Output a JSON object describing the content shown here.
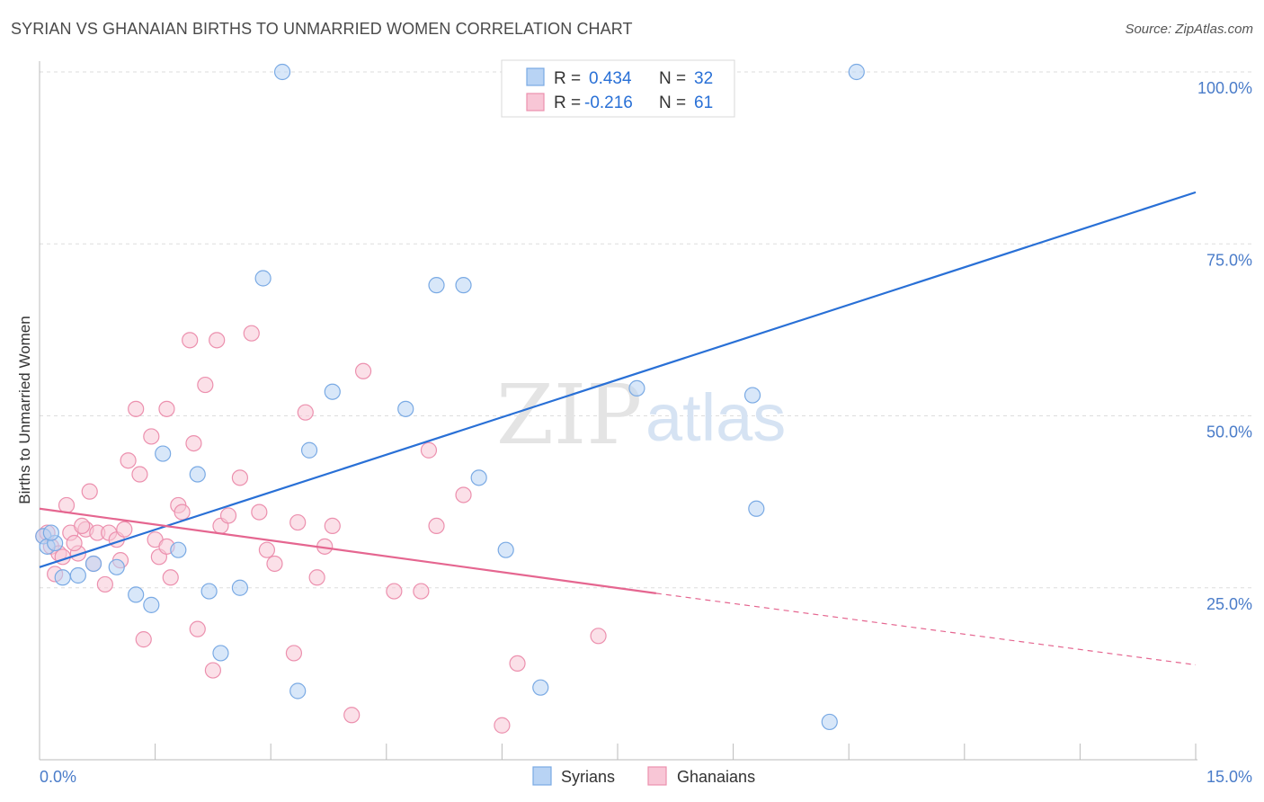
{
  "header": {
    "title": "SYRIAN VS GHANAIAN BIRTHS TO UNMARRIED WOMEN CORRELATION CHART",
    "source": "Source: ZipAtlas.com"
  },
  "watermark": {
    "zip": "ZIP",
    "atlas": "atlas"
  },
  "legend": {
    "r_label": "R =",
    "n_label": "N =",
    "rows": [
      {
        "series": "syrians",
        "r": "0.434",
        "n": "32"
      },
      {
        "series": "ghanaians",
        "r": "-0.216",
        "n": "61"
      }
    ]
  },
  "bottom_legend": {
    "syrians": "Syrians",
    "ghanaians": "Ghanaians"
  },
  "colors": {
    "syrians_fill": "#b8d3f4",
    "syrians_stroke": "#7aaae4",
    "syrians_line": "#2970d6",
    "ghanaians_fill": "#f8c6d6",
    "ghanaians_stroke": "#ec90ae",
    "ghanaians_line": "#e56690",
    "tick_text": "#4a7cc9"
  },
  "chart_data": {
    "type": "scatter",
    "title": "SYRIAN VS GHANAIAN BIRTHS TO UNMARRIED WOMEN CORRELATION CHART",
    "xlabel": "",
    "ylabel": "Births to Unmarried Women",
    "xlim": [
      0,
      15
    ],
    "ylim": [
      0,
      100
    ],
    "x_tick_labels": [
      {
        "value": 0,
        "label": "0.0%"
      },
      {
        "value": 15,
        "label": "15.0%"
      }
    ],
    "y_tick_labels": [
      {
        "value": 25,
        "label": "25.0%"
      },
      {
        "value": 50,
        "label": "50.0%"
      },
      {
        "value": 75,
        "label": "75.0%"
      },
      {
        "value": 100,
        "label": "100.0%"
      }
    ],
    "grid": true,
    "legend_position": "top-center",
    "series": [
      {
        "name": "Syrians",
        "key": "syrians",
        "r": 0.434,
        "n": 32,
        "trend": {
          "x0": 0,
          "y0": 28,
          "x1": 15,
          "y1": 82.5
        },
        "points": [
          [
            0.05,
            32.5
          ],
          [
            0.1,
            31
          ],
          [
            0.3,
            26.5
          ],
          [
            0.5,
            26.8
          ],
          [
            0.7,
            28.5
          ],
          [
            1.0,
            28
          ],
          [
            1.25,
            24
          ],
          [
            1.45,
            22.5
          ],
          [
            1.6,
            44.5
          ],
          [
            1.8,
            30.5
          ],
          [
            2.05,
            41.5
          ],
          [
            2.2,
            24.5
          ],
          [
            2.35,
            15.5
          ],
          [
            2.6,
            25
          ],
          [
            2.9,
            70
          ],
          [
            3.5,
            45
          ],
          [
            3.35,
            10
          ],
          [
            3.8,
            53.5
          ],
          [
            3.15,
            100
          ],
          [
            4.75,
            51
          ],
          [
            5.15,
            69
          ],
          [
            5.5,
            69
          ],
          [
            5.7,
            41
          ],
          [
            6.05,
            30.5
          ],
          [
            6.5,
            10.5
          ],
          [
            7.75,
            54
          ],
          [
            9.25,
            53
          ],
          [
            9.3,
            36.5
          ],
          [
            10.25,
            5.5
          ],
          [
            10.6,
            100
          ],
          [
            0.2,
            31.5
          ],
          [
            0.15,
            33
          ]
        ]
      },
      {
        "name": "Ghanaians",
        "key": "ghanaians",
        "r": -0.216,
        "n": 61,
        "trend": {
          "x0": 0,
          "y0": 36.5,
          "x1": 8.0,
          "y1": 24.2,
          "dash_to_x": 15,
          "dash_to_y": 13.8
        },
        "points": [
          [
            0.05,
            32.5
          ],
          [
            0.1,
            33
          ],
          [
            0.15,
            31
          ],
          [
            0.2,
            27
          ],
          [
            0.25,
            30
          ],
          [
            0.35,
            37
          ],
          [
            0.4,
            33
          ],
          [
            0.5,
            30
          ],
          [
            0.6,
            33.5
          ],
          [
            0.65,
            39
          ],
          [
            0.7,
            28.5
          ],
          [
            0.75,
            33
          ],
          [
            0.85,
            25.5
          ],
          [
            0.9,
            33
          ],
          [
            1.0,
            32
          ],
          [
            1.05,
            29
          ],
          [
            1.15,
            43.5
          ],
          [
            1.25,
            51
          ],
          [
            1.3,
            41.5
          ],
          [
            1.35,
            17.5
          ],
          [
            1.45,
            47
          ],
          [
            1.5,
            32
          ],
          [
            1.55,
            29.5
          ],
          [
            1.65,
            31
          ],
          [
            1.65,
            51
          ],
          [
            1.7,
            26.5
          ],
          [
            1.8,
            37
          ],
          [
            1.85,
            36
          ],
          [
            1.95,
            61
          ],
          [
            2.0,
            46
          ],
          [
            2.05,
            19
          ],
          [
            2.15,
            54.5
          ],
          [
            2.25,
            13
          ],
          [
            2.3,
            61
          ],
          [
            2.35,
            34
          ],
          [
            2.45,
            35.5
          ],
          [
            2.6,
            41
          ],
          [
            2.75,
            62
          ],
          [
            2.85,
            36
          ],
          [
            2.95,
            30.5
          ],
          [
            3.05,
            28.5
          ],
          [
            3.3,
            15.5
          ],
          [
            3.35,
            34.5
          ],
          [
            3.45,
            50.5
          ],
          [
            3.6,
            26.5
          ],
          [
            3.7,
            31
          ],
          [
            3.8,
            34
          ],
          [
            4.05,
            6.5
          ],
          [
            4.2,
            56.5
          ],
          [
            4.6,
            24.5
          ],
          [
            4.95,
            24.5
          ],
          [
            5.05,
            45
          ],
          [
            5.15,
            34
          ],
          [
            5.5,
            38.5
          ],
          [
            6.0,
            5
          ],
          [
            6.2,
            14
          ],
          [
            7.25,
            18
          ],
          [
            0.3,
            29.5
          ],
          [
            0.55,
            34
          ],
          [
            1.1,
            33.5
          ],
          [
            0.45,
            31.5
          ]
        ]
      }
    ]
  }
}
